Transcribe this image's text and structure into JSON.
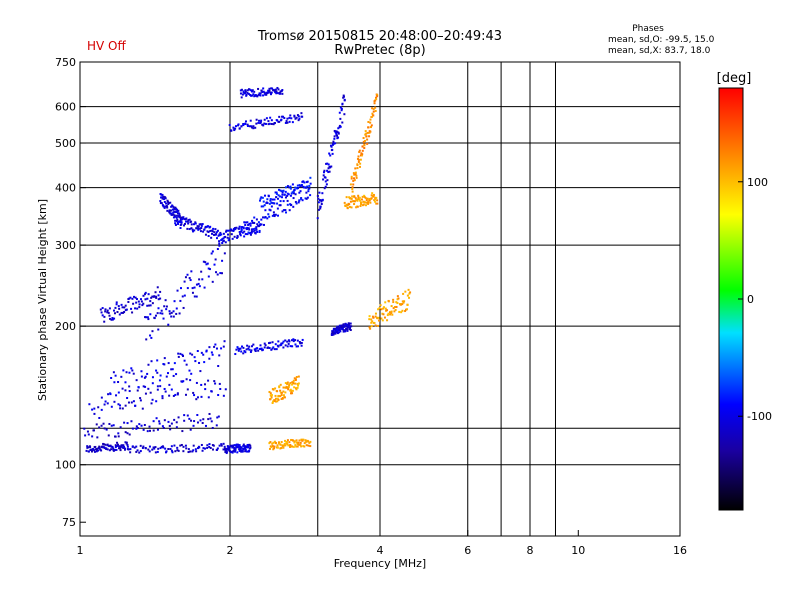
{
  "header": {
    "status": "HV Off",
    "status_color": "#d40000",
    "title_line1": "Tromsø 20150815 20:48:00–20:49:43",
    "title_line2": "RwPretec (8p)",
    "stats_heading": "Phases",
    "stats_o": "mean, sd,O: -99.5, 15.0",
    "stats_x": "mean, sd,X: 83.7, 18.0"
  },
  "chart_data": {
    "type": "scatter",
    "title": "Tromsø 20150815 20:48:00–20:49:43",
    "subtitle": "RwPretec (8p)",
    "xlabel": "Frequency [MHz]",
    "ylabel": "Stationary phase Virtual Height [km]",
    "x_scale": "log",
    "y_scale": "log",
    "xlim": [
      1,
      16
    ],
    "ylim": [
      70,
      750
    ],
    "x_ticks": [
      1,
      2,
      4,
      6,
      8,
      10,
      16
    ],
    "x_tick_labels": [
      "1",
      "2",
      "4",
      "6",
      "8",
      "10",
      "16"
    ],
    "x_grid": [
      2,
      3,
      4,
      6,
      7,
      8,
      9
    ],
    "y_ticks": [
      75,
      100,
      200,
      300,
      400,
      500,
      600,
      750
    ],
    "y_tick_labels": [
      "75",
      "100",
      "200",
      "300",
      "400",
      "500",
      "600",
      "750"
    ],
    "y_grid": [
      100,
      120,
      200,
      300,
      400,
      500,
      600
    ],
    "grid": true,
    "colorbar": {
      "label": "[deg]",
      "range": [
        -180,
        180
      ],
      "ticks": [
        100,
        0,
        -100
      ],
      "tick_labels": [
        "100",
        "0",
        "-100"
      ],
      "colors": [
        "#000000",
        "#1a00a0",
        "#0000ff",
        "#00e0ff",
        "#00ff00",
        "#ffff00",
        "#ff8000",
        "#ff0000"
      ]
    },
    "segments": [
      {
        "x": [
          1.03,
          1.25
        ],
        "y": [
          108,
          110
        ],
        "phase": -115,
        "noise": 0.02
      },
      {
        "x": [
          1.25,
          1.95
        ],
        "y": [
          108,
          109
        ],
        "phase": -110,
        "noise": 0.02
      },
      {
        "x": [
          1.95,
          2.2
        ],
        "y": [
          108,
          109
        ],
        "phase": -105,
        "noise": 0.02
      },
      {
        "x": [
          1.02,
          1.9
        ],
        "y": [
          118,
          125
        ],
        "phase": -110,
        "noise": 0.04
      },
      {
        "x": [
          1.05,
          1.95
        ],
        "y": [
          133,
          150
        ],
        "phase": -105,
        "noise": 0.06
      },
      {
        "x": [
          1.15,
          1.95
        ],
        "y": [
          150,
          175
        ],
        "phase": -100,
        "noise": 0.06
      },
      {
        "x": [
          2.05,
          2.8
        ],
        "y": [
          177,
          185
        ],
        "phase": -100,
        "noise": 0.02
      },
      {
        "x": [
          1.1,
          1.45
        ],
        "y": [
          210,
          235
        ],
        "phase": -110,
        "noise": 0.04
      },
      {
        "x": [
          1.35,
          1.95
        ],
        "y": [
          195,
          285
        ],
        "phase": -105,
        "noise": 0.08
      },
      {
        "x": [
          1.45,
          1.6
        ],
        "y": [
          380,
          340
        ],
        "phase": -110,
        "noise": 0.03
      },
      {
        "x": [
          1.55,
          1.9
        ],
        "y": [
          340,
          315
        ],
        "phase": -105,
        "noise": 0.03
      },
      {
        "x": [
          1.9,
          2.3
        ],
        "y": [
          310,
          330
        ],
        "phase": -100,
        "noise": 0.03
      },
      {
        "x": [
          2.1,
          2.9
        ],
        "y": [
          320,
          395
        ],
        "phase": -95,
        "noise": 0.04
      },
      {
        "x": [
          2.3,
          2.9
        ],
        "y": [
          370,
          410
        ],
        "phase": -90,
        "noise": 0.03
      },
      {
        "x": [
          2.0,
          2.8
        ],
        "y": [
          540,
          570
        ],
        "phase": -105,
        "noise": 0.02
      },
      {
        "x": [
          2.1,
          2.55
        ],
        "y": [
          640,
          650
        ],
        "phase": -105,
        "noise": 0.02
      },
      {
        "x": [
          3.0,
          3.4
        ],
        "y": [
          360,
          620
        ],
        "phase": -105,
        "noise": 0.06
      },
      {
        "x": [
          3.2,
          3.5
        ],
        "y": [
          195,
          200
        ],
        "phase": -110,
        "noise": 0.02
      },
      {
        "x": [
          2.4,
          2.9
        ],
        "y": [
          110,
          112
        ],
        "phase": 110,
        "noise": 0.02
      },
      {
        "x": [
          2.4,
          2.75
        ],
        "y": [
          140,
          150
        ],
        "phase": 110,
        "noise": 0.04
      },
      {
        "x": [
          3.4,
          3.95
        ],
        "y": [
          370,
          380
        ],
        "phase": 110,
        "noise": 0.03
      },
      {
        "x": [
          3.5,
          3.95
        ],
        "y": [
          400,
          620
        ],
        "phase": 120,
        "noise": 0.05
      },
      {
        "x": [
          3.8,
          4.6
        ],
        "y": [
          205,
          230
        ],
        "phase": 110,
        "noise": 0.05
      }
    ]
  }
}
